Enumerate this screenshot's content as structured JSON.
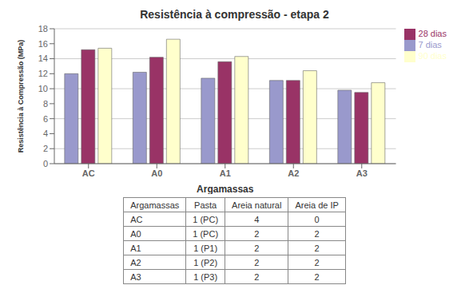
{
  "chart_data": {
    "type": "bar",
    "title": "Resistência à compressão - etapa 2",
    "x_label": "Argamassas",
    "y_label": "Resistência à Compressão (MPa)",
    "categories": [
      "AC",
      "A0",
      "A1",
      "A2",
      "A3"
    ],
    "series": [
      {
        "name": "7 dias",
        "color": "#9999CC",
        "values": [
          12.0,
          12.2,
          11.4,
          11.1,
          9.8
        ]
      },
      {
        "name": "28 dias",
        "color": "#993366",
        "values": [
          15.2,
          14.2,
          13.6,
          11.1,
          9.5
        ]
      },
      {
        "name": "90 dias",
        "color": "#FFFFCC",
        "values": [
          15.4,
          16.6,
          14.3,
          12.4,
          10.8
        ]
      }
    ],
    "ylim": [
      0,
      18
    ],
    "yticks": [
      0,
      2,
      4,
      6,
      8,
      10,
      12,
      14,
      16,
      18
    ],
    "grid": true,
    "legend": "right",
    "table": {
      "columns": [
        "Argamassas",
        "Pasta",
        "Areia natural",
        "Areia de IP"
      ],
      "rows": [
        [
          "AC",
          "1 (PC)",
          "4",
          "0"
        ],
        [
          "A0",
          "1 (PC)",
          "2",
          "2"
        ],
        [
          "A1",
          "1 (P1)",
          "2",
          "2"
        ],
        [
          "A2",
          "1 (P2)",
          "2",
          "2"
        ],
        [
          "A3",
          "1 (P3)",
          "2",
          "2"
        ]
      ]
    }
  }
}
